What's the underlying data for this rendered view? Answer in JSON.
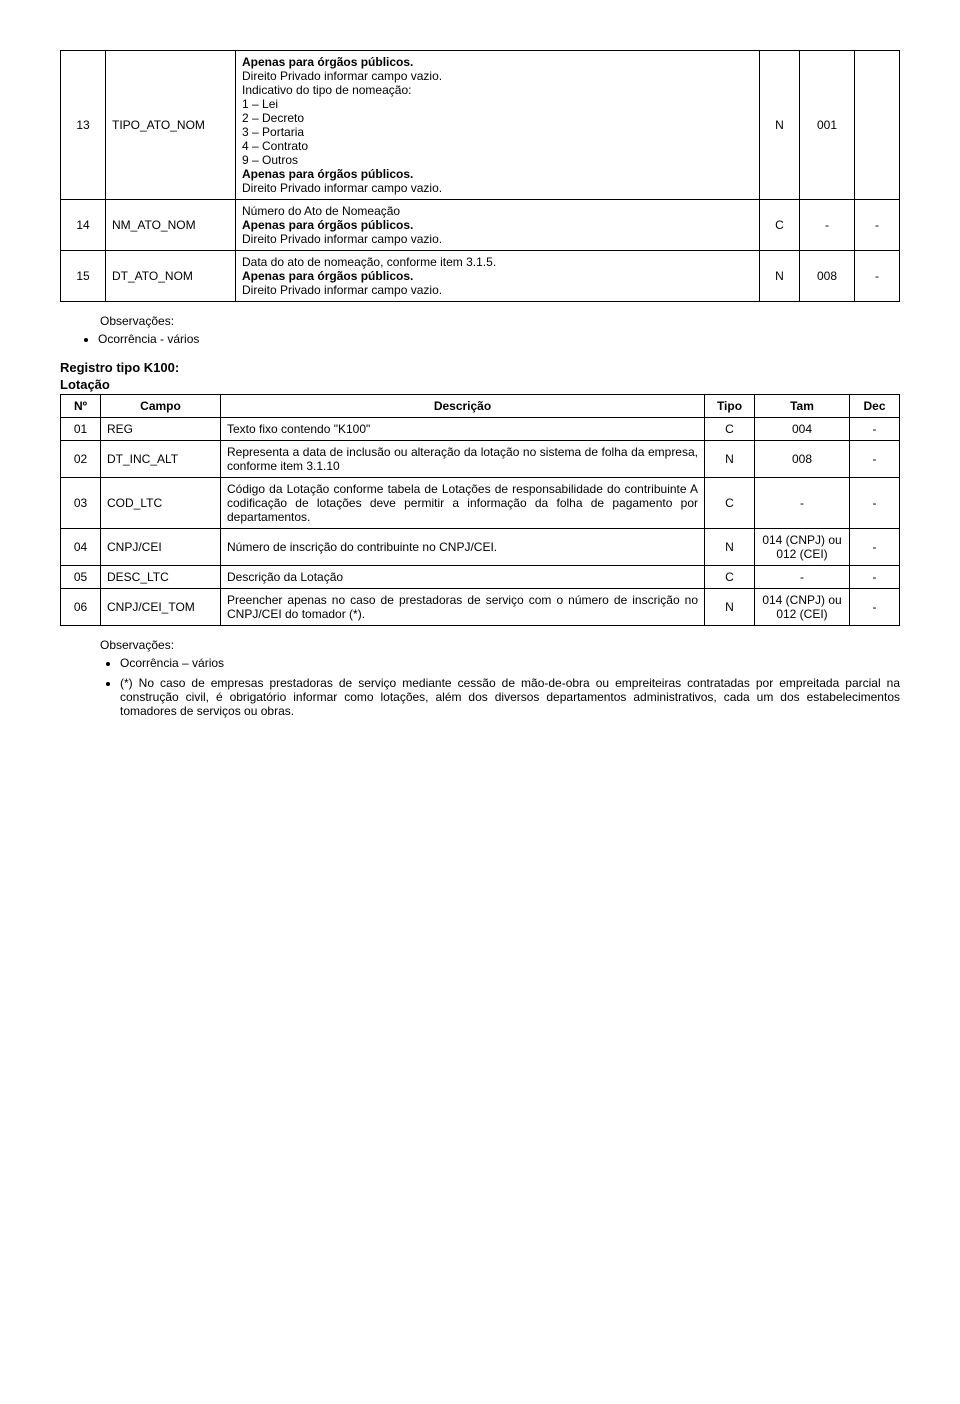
{
  "table1": {
    "rows": [
      {
        "num": "13",
        "campo": "TIPO_ATO_NOM",
        "desc_lines": [
          {
            "t": "Apenas para órgãos públicos.",
            "b": true
          },
          {
            "t": "Direito Privado informar campo vazio.",
            "b": false
          },
          {
            "t": "Indicativo do tipo de nomeação:",
            "b": false
          },
          {
            "t": "1 – Lei",
            "b": false
          },
          {
            "t": "2 – Decreto",
            "b": false
          },
          {
            "t": "3 – Portaria",
            "b": false
          },
          {
            "t": "4 – Contrato",
            "b": false
          },
          {
            "t": "9 – Outros",
            "b": false
          },
          {
            "t": "Apenas para órgãos públicos.",
            "b": true
          },
          {
            "t": "Direito Privado informar campo vazio.",
            "b": false
          }
        ],
        "tipo": "N",
        "tam": "001",
        "dec": ""
      },
      {
        "num": "14",
        "campo": "NM_ATO_NOM",
        "desc_lines": [
          {
            "t": "Número do Ato de Nomeação",
            "b": false
          },
          {
            "t": "Apenas para órgãos públicos.",
            "b": true
          },
          {
            "t": "Direito Privado informar campo vazio.",
            "b": false
          }
        ],
        "tipo": "C",
        "tam": "-",
        "dec": "-"
      },
      {
        "num": "15",
        "campo": "DT_ATO_NOM",
        "desc_lines": [
          {
            "t": "Data do ato de nomeação, conforme item 3.1.5.",
            "b": false
          },
          {
            "t": "Apenas para órgãos públicos.",
            "b": true
          },
          {
            "t": "Direito Privado informar campo vazio.",
            "b": false
          }
        ],
        "tipo": "N",
        "tam": "008",
        "dec": "-"
      }
    ]
  },
  "obs1_label": "Observações:",
  "obs1_item": "Ocorrência - vários",
  "heading1": "Registro tipo K100:",
  "heading2": "Lotação",
  "table2": {
    "headers": [
      "Nº",
      "Campo",
      "Descrição",
      "Tipo",
      "Tam",
      "Dec"
    ],
    "rows": [
      {
        "num": "01",
        "campo": "REG",
        "desc": "Texto fixo contendo \"K100\"",
        "tipo": "C",
        "tam": "004",
        "dec": "-"
      },
      {
        "num": "02",
        "campo": "DT_INC_ALT",
        "desc": "Representa a data de inclusão ou alteração da lotação no sistema de folha da empresa, conforme item 3.1.10",
        "tipo": "N",
        "tam": "008",
        "dec": "-"
      },
      {
        "num": "03",
        "campo": "COD_LTC",
        "desc": "Código da Lotação conforme tabela de Lotações de responsabilidade do contribuinte A codificação de lotações deve permitir a informação da folha de pagamento por departamentos.",
        "tipo": "C",
        "tam": "-",
        "dec": "-"
      },
      {
        "num": "04",
        "campo": "CNPJ/CEI",
        "desc": "Número de inscrição do contribuinte no CNPJ/CEI.",
        "tipo": "N",
        "tam": "014 (CNPJ) ou 012 (CEI)",
        "dec": "-"
      },
      {
        "num": "05",
        "campo": "DESC_LTC",
        "desc": "Descrição da Lotação",
        "tipo": "C",
        "tam": "-",
        "dec": "-"
      },
      {
        "num": "06",
        "campo": "CNPJ/CEI_TOM",
        "desc": "Preencher apenas no caso de prestadoras de serviço com o número de inscrição no CNPJ/CEI do tomador (*).",
        "tipo": "N",
        "tam": "014 (CNPJ) ou 012 (CEI)",
        "dec": "-"
      }
    ]
  },
  "obs2_label": "Observações:",
  "obs2_items": [
    "Ocorrência – vários",
    "(*) No caso de empresas prestadoras de serviço mediante cessão de mão-de-obra ou empreiteiras contratadas por empreitada parcial na construção civil, é obrigatório informar como lotações, além dos diversos departamentos administrativos, cada um dos estabelecimentos tomadores de serviços ou obras."
  ]
}
